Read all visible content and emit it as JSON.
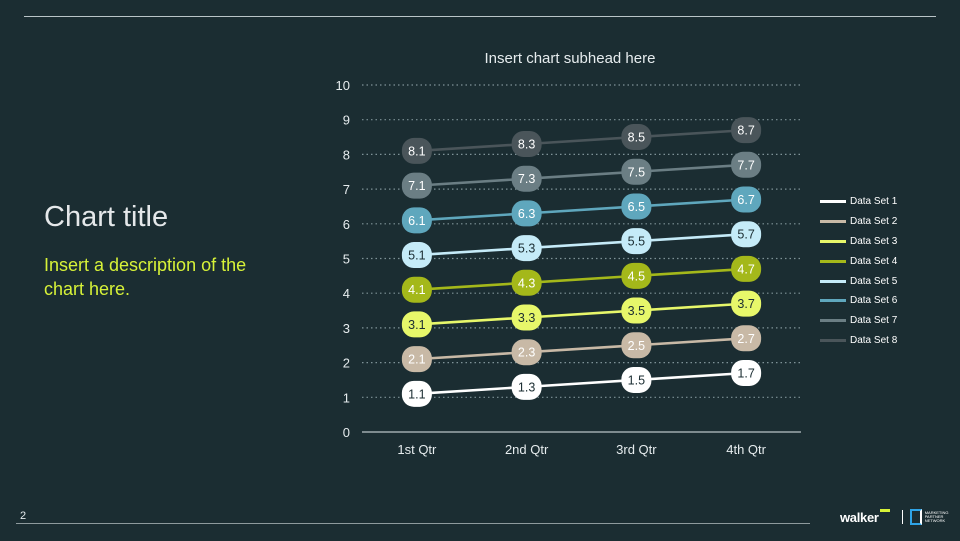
{
  "page": {
    "number": "2"
  },
  "title": "Chart title",
  "description": "Insert a description of the chart here.",
  "brand": {
    "name": "walker",
    "partner_text": "MARKETING PARTNER NETWORK"
  },
  "colors": {
    "background": "#1b2d32",
    "description": "#d7f238",
    "series": [
      "#ffffff",
      "#c8b9a6",
      "#e7f76a",
      "#a4b81a",
      "#c5ebf8",
      "#5fa7bd",
      "#6b7e84",
      "#4a555a"
    ]
  },
  "chart_data": {
    "type": "line",
    "subhead": "Insert chart subhead here",
    "categories": [
      "1st Qtr",
      "2nd Qtr",
      "3rd Qtr",
      "4th Qtr"
    ],
    "ylim": [
      0,
      10
    ],
    "yticks": [
      "0",
      "1",
      "2",
      "3",
      "4",
      "5",
      "6",
      "7",
      "8",
      "9",
      "10"
    ],
    "grid": "horizontal-dotted",
    "legend_position": "right",
    "data_labels": true,
    "series": [
      {
        "name": "Data Set 1",
        "values": [
          1.1,
          1.3,
          1.5,
          1.7
        ],
        "labels": [
          "1.1",
          "1.3",
          "1.5",
          "1.7"
        ]
      },
      {
        "name": "Data Set 2",
        "values": [
          2.1,
          2.3,
          2.5,
          2.7
        ],
        "labels": [
          "2.1",
          "2.3",
          "2.5",
          "2.7"
        ]
      },
      {
        "name": "Data Set 3",
        "values": [
          3.1,
          3.3,
          3.5,
          3.7
        ],
        "labels": [
          "3.1",
          "3.3",
          "3.5",
          "3.7"
        ]
      },
      {
        "name": "Data Set 4",
        "values": [
          4.1,
          4.3,
          4.5,
          4.7
        ],
        "labels": [
          "4.1",
          "4.3",
          "4.5",
          "4.7"
        ]
      },
      {
        "name": "Data Set 5",
        "values": [
          5.1,
          5.3,
          5.5,
          5.7
        ],
        "labels": [
          "5.1",
          "5.3",
          "5.5",
          "5.7"
        ]
      },
      {
        "name": "Data Set 6",
        "values": [
          6.1,
          6.3,
          6.5,
          6.7
        ],
        "labels": [
          "6.1",
          "6.3",
          "6.5",
          "6.7"
        ]
      },
      {
        "name": "Data Set 7",
        "values": [
          7.1,
          7.3,
          7.5,
          7.7
        ],
        "labels": [
          "7.1",
          "7.3",
          "7.5",
          "7.7"
        ]
      },
      {
        "name": "Data Set 8",
        "values": [
          8.1,
          8.3,
          8.5,
          8.7
        ],
        "labels": [
          "8.1",
          "8.3",
          "8.5",
          "8.7"
        ]
      }
    ]
  }
}
